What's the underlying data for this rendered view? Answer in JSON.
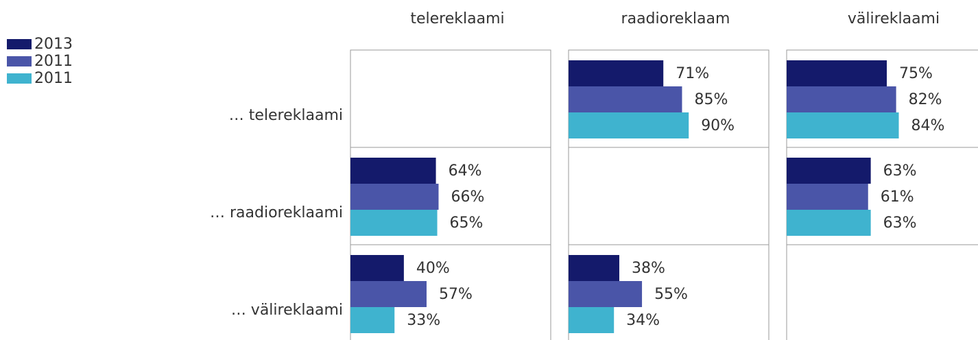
{
  "chart_data": {
    "type": "bar",
    "panels": [
      "telereklaami",
      "raadioreklaam",
      "välireklaami"
    ],
    "categories": [
      "… telereklaami",
      "… raadioreklaami",
      "… välireklaami"
    ],
    "xlim": [
      0,
      150
    ],
    "series": [
      {
        "name": "2013",
        "color": "#141a6b",
        "values": [
          [
            null,
            71,
            75
          ],
          [
            64,
            null,
            63
          ],
          [
            40,
            38,
            null
          ]
        ],
        "value_labels": [
          [
            null,
            "71%",
            "75%"
          ],
          [
            "64%",
            null,
            "63%"
          ],
          [
            "40%",
            "38%",
            null
          ]
        ]
      },
      {
        "name": "2011",
        "color": "#4a55a8",
        "values": [
          [
            null,
            85,
            82
          ],
          [
            66,
            null,
            61
          ],
          [
            57,
            55,
            null
          ]
        ],
        "value_labels": [
          [
            null,
            "85%",
            "82%"
          ],
          [
            "66%",
            null,
            "61%"
          ],
          [
            "57%",
            "55%",
            null
          ]
        ]
      },
      {
        "name": "2011",
        "color": "#3fb3cf",
        "values": [
          [
            null,
            90,
            84
          ],
          [
            65,
            null,
            63
          ],
          [
            33,
            34,
            null
          ]
        ],
        "value_labels": [
          [
            null,
            "90%",
            "84%"
          ],
          [
            "65%",
            null,
            "63%"
          ],
          [
            "33%",
            "34%",
            null
          ]
        ]
      }
    ]
  }
}
